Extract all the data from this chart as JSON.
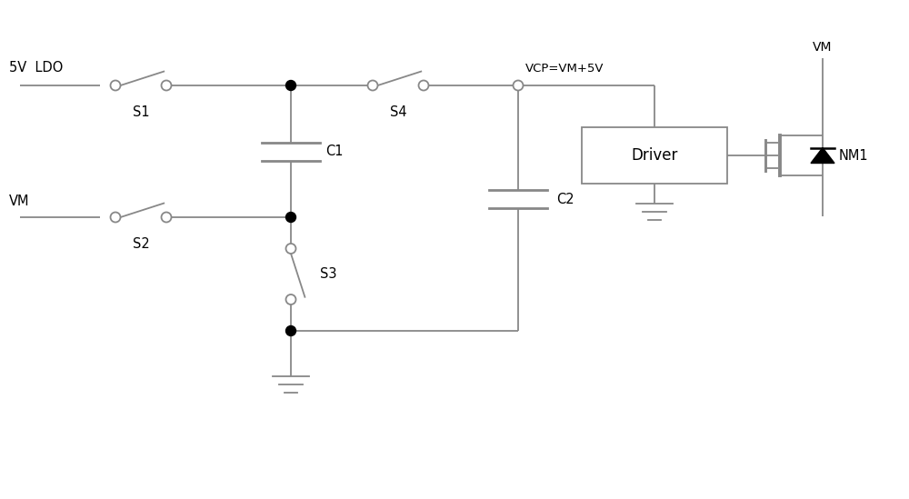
{
  "line_color": "#888888",
  "dot_color": "#000000",
  "text_color": "#000000",
  "bg_color": "#ffffff",
  "line_width": 1.3,
  "figsize": [
    10.0,
    5.49
  ],
  "dpi": 100,
  "labels": {
    "ldo": "5V  LDO",
    "vm_left": "VM",
    "s1": "S1",
    "s2": "S2",
    "s3": "S3",
    "s4": "S4",
    "c1": "C1",
    "c2": "C2",
    "vcp": "VCP=VM+5V",
    "vm_top": "VM",
    "nm1": "NM1",
    "driver": "Driver"
  },
  "xlim": [
    0,
    10.0
  ],
  "ylim": [
    0,
    5.49
  ]
}
